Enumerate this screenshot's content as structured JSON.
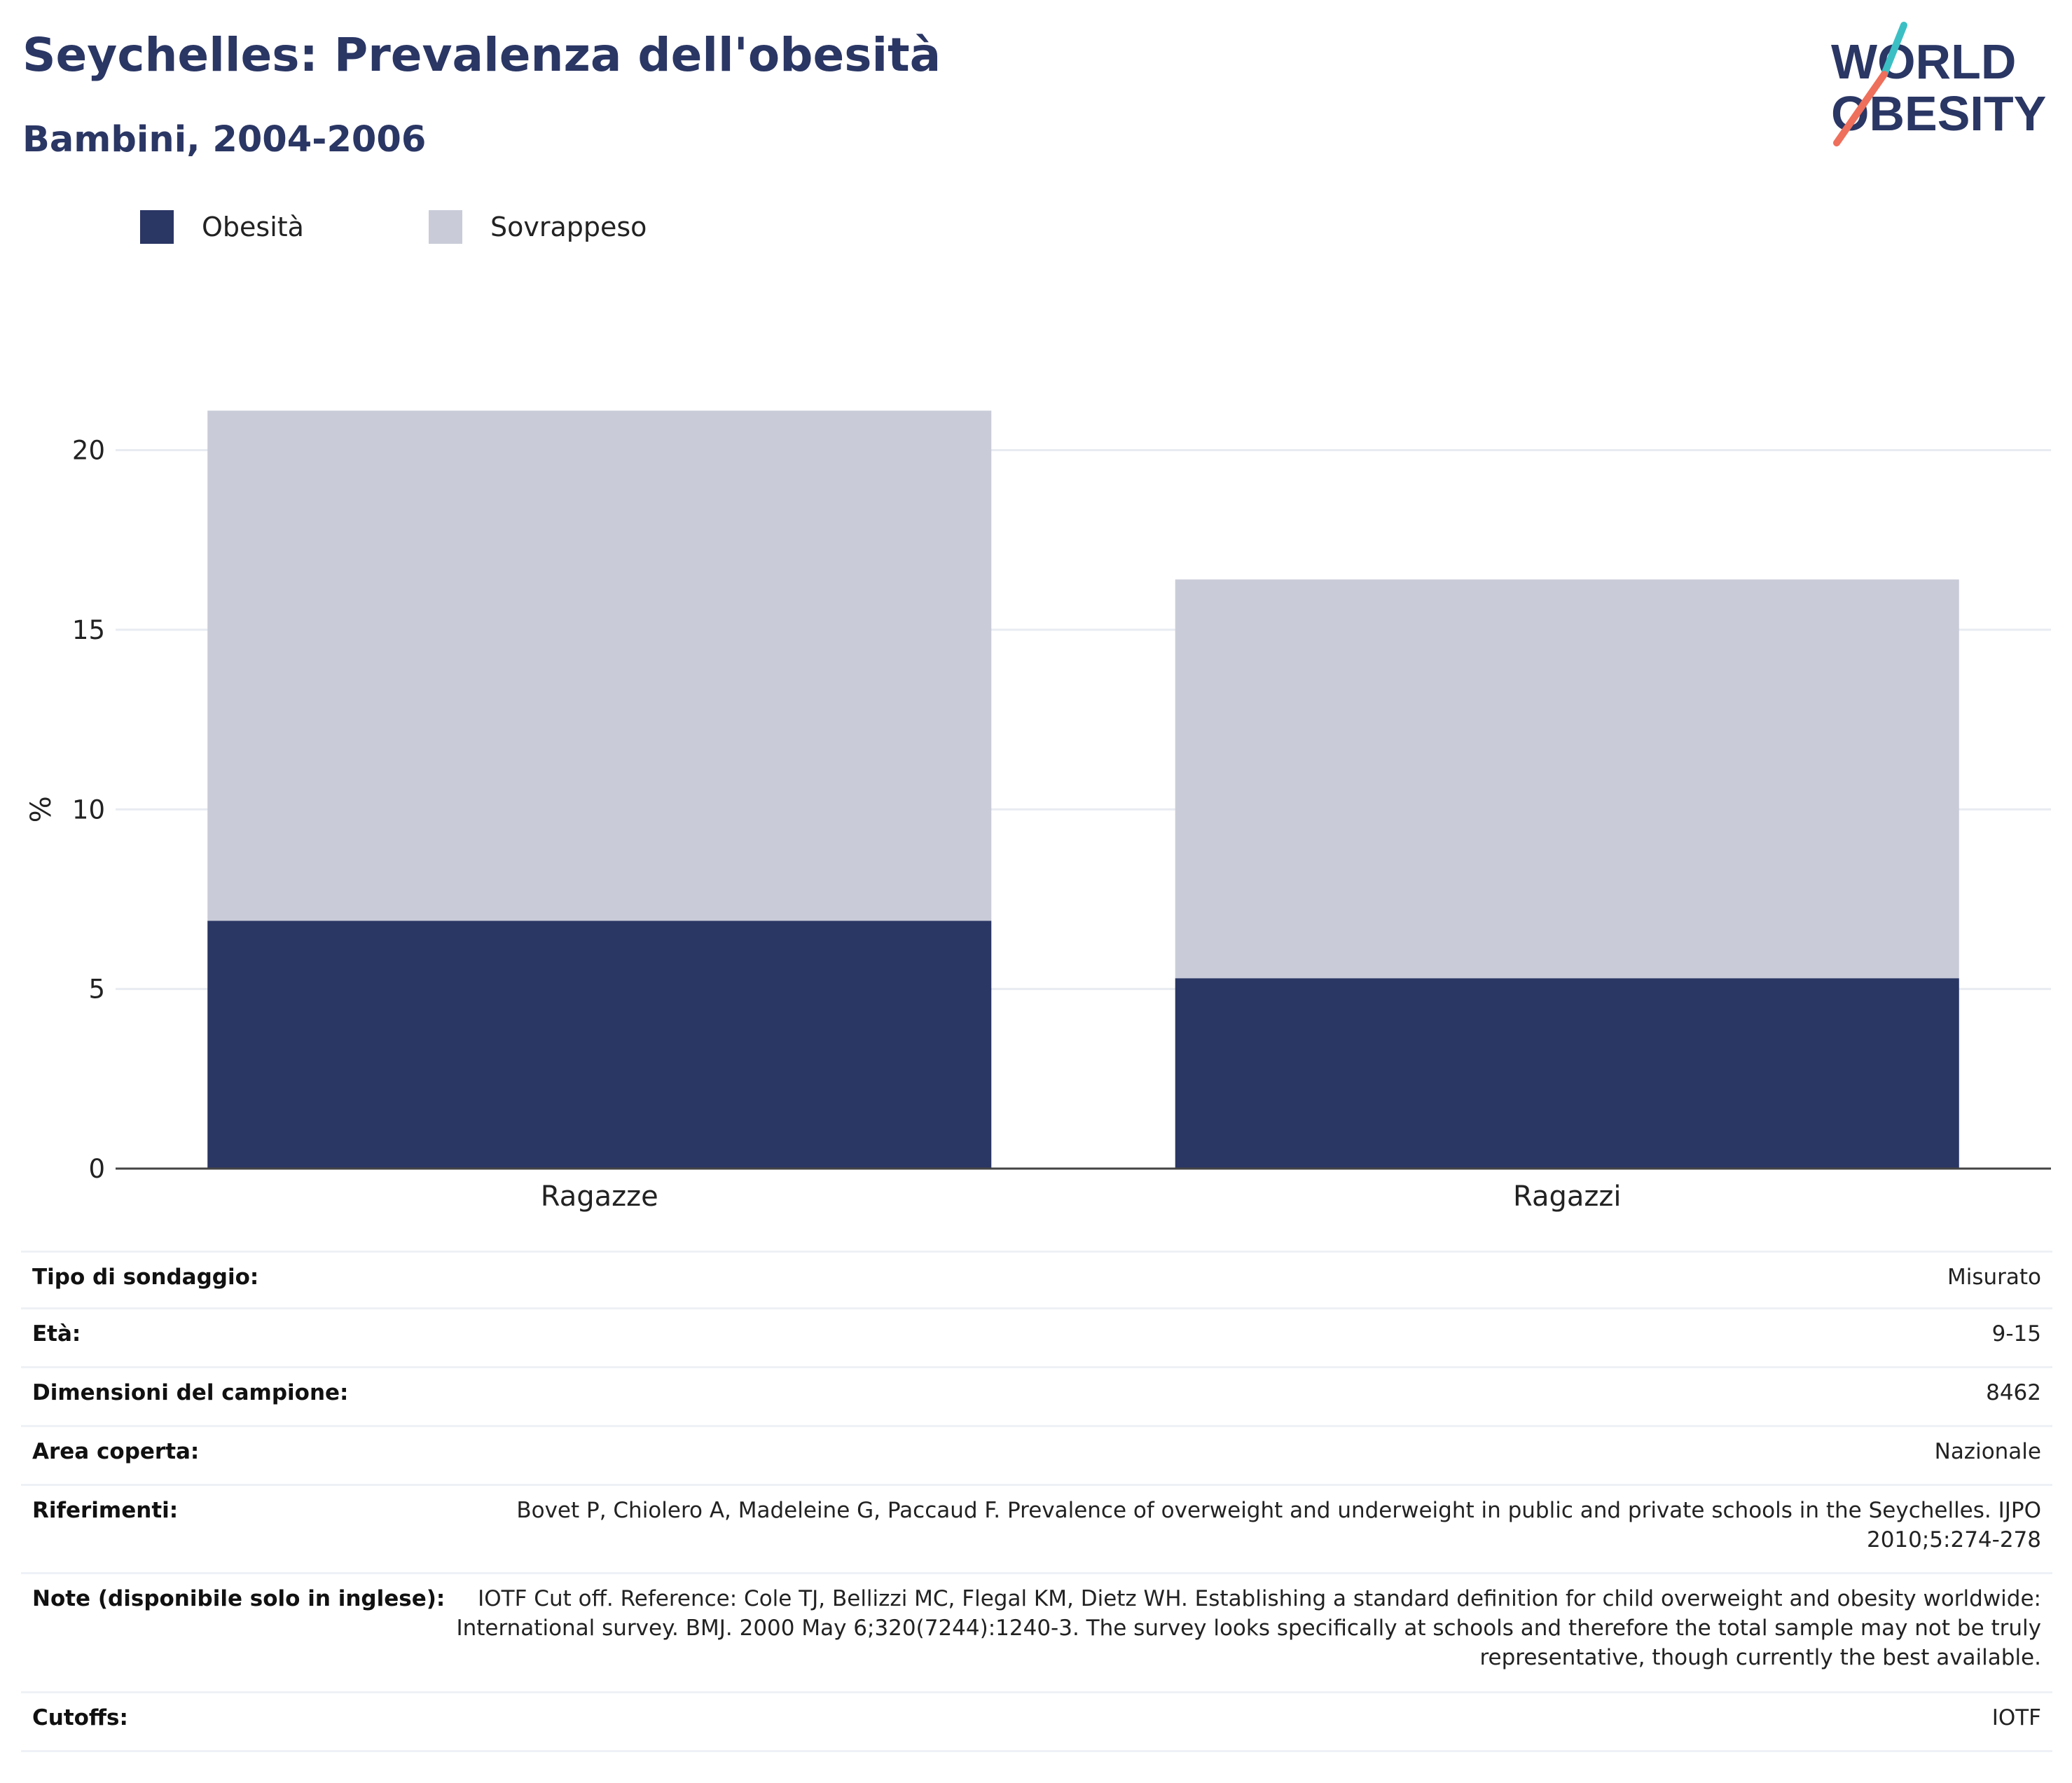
{
  "header": {
    "title": "Seychelles: Prevalenza dell'obesità",
    "subtitle": "Bambini, 2004-2006"
  },
  "logo": {
    "line1": "WORLD",
    "line2": "OBESITY",
    "colors": {
      "text": "#2a3664",
      "slash_top": "#3bbfc4",
      "slash_bottom": "#ee6f5b"
    }
  },
  "legend": [
    {
      "label": "Obesità",
      "color": "#2a3664"
    },
    {
      "label": "Sovrappeso",
      "color": "#c9ccd8"
    }
  ],
  "chart_data": {
    "type": "bar",
    "stacked": true,
    "categories": [
      "Ragazze",
      "Ragazzi"
    ],
    "series": [
      {
        "name": "Obesità",
        "values": [
          6.9,
          5.3
        ],
        "color": "#2a3664"
      },
      {
        "name": "Sovrappeso",
        "values": [
          14.2,
          11.1
        ],
        "color": "#c9ccd8"
      }
    ],
    "ylabel": "%",
    "ylim": [
      0,
      22
    ],
    "yticks": [
      0,
      5,
      10,
      15,
      20
    ],
    "grid": true,
    "legend_position": "top-left"
  },
  "meta": {
    "rows": [
      {
        "label": "Tipo di sondaggio:",
        "value": "Misurato"
      },
      {
        "label": "Età:",
        "value": "9-15"
      },
      {
        "label": "Dimensioni del campione:",
        "value": "8462"
      },
      {
        "label": "Area coperta:",
        "value": "Nazionale"
      },
      {
        "label": "Riferimenti:",
        "value": "Bovet P, Chiolero A, Madeleine G, Paccaud F. Prevalence of overweight and underweight in public and private schools in the Seychelles. IJPO 2010;5:274-278"
      },
      {
        "label": "Note (disponibile solo in inglese):",
        "value": "IOTF Cut off. Reference: Cole TJ, Bellizzi MC, Flegal KM, Dietz WH. Establishing a standard definition for child overweight and obesity worldwide: International survey. BMJ. 2000 May 6;320(7244):1240-3. The survey looks specifically at schools and therefore the total sample may not be truly representative, though currently the best available."
      },
      {
        "label": "Cutoffs:",
        "value": "IOTF"
      }
    ]
  }
}
